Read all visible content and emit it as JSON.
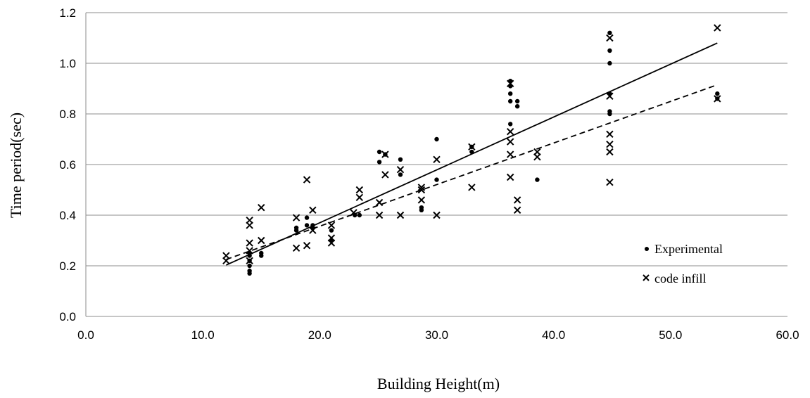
{
  "chart_data": {
    "type": "scatter",
    "title": "",
    "xlabel": "Building Height(m)",
    "ylabel": "Time period(sec)",
    "xlim": [
      0,
      60
    ],
    "ylim": [
      0,
      1.2
    ],
    "x_ticks": [
      "0.0",
      "10.0",
      "20.0",
      "30.0",
      "40.0",
      "50.0",
      "60.0"
    ],
    "y_ticks": [
      "0.0",
      "0.2",
      "0.4",
      "0.6",
      "0.8",
      "1.0",
      "1.2"
    ],
    "grid": "horizontal",
    "legend_position": "bottom-right",
    "series": [
      {
        "name": "Experimental",
        "marker": "dot",
        "color": "#000000",
        "points": [
          [
            14.0,
            0.17
          ],
          [
            14.0,
            0.18
          ],
          [
            14.0,
            0.2
          ],
          [
            14.0,
            0.22
          ],
          [
            14.0,
            0.24
          ],
          [
            14.0,
            0.25
          ],
          [
            15.0,
            0.24
          ],
          [
            15.0,
            0.25
          ],
          [
            18.0,
            0.34
          ],
          [
            18.0,
            0.35
          ],
          [
            18.9,
            0.36
          ],
          [
            18.9,
            0.39
          ],
          [
            19.4,
            0.35
          ],
          [
            19.4,
            0.36
          ],
          [
            21.0,
            0.3
          ],
          [
            21.0,
            0.34
          ],
          [
            23.0,
            0.4
          ],
          [
            23.4,
            0.4
          ],
          [
            25.1,
            0.61
          ],
          [
            25.1,
            0.65
          ],
          [
            25.6,
            0.64
          ],
          [
            26.9,
            0.56
          ],
          [
            26.9,
            0.62
          ],
          [
            28.7,
            0.42
          ],
          [
            28.7,
            0.43
          ],
          [
            30.0,
            0.54
          ],
          [
            30.0,
            0.7
          ],
          [
            33.0,
            0.65
          ],
          [
            33.0,
            0.67
          ],
          [
            36.3,
            0.76
          ],
          [
            36.3,
            0.85
          ],
          [
            36.3,
            0.88
          ],
          [
            36.3,
            0.91
          ],
          [
            36.3,
            0.93
          ],
          [
            36.9,
            0.83
          ],
          [
            36.9,
            0.85
          ],
          [
            38.6,
            0.54
          ],
          [
            44.8,
            0.8
          ],
          [
            44.8,
            0.81
          ],
          [
            44.8,
            0.88
          ],
          [
            44.8,
            1.0
          ],
          [
            44.8,
            1.05
          ],
          [
            44.8,
            1.12
          ],
          [
            54.0,
            0.86
          ],
          [
            54.0,
            0.88
          ]
        ],
        "trendline": {
          "style": "solid",
          "x": [
            12.0,
            54.0
          ],
          "y": [
            0.203,
            1.08
          ]
        }
      },
      {
        "name": "code infill",
        "marker": "x",
        "color": "#000000",
        "points": [
          [
            12.0,
            0.22
          ],
          [
            12.0,
            0.24
          ],
          [
            14.0,
            0.22
          ],
          [
            14.0,
            0.26
          ],
          [
            14.0,
            0.29
          ],
          [
            14.0,
            0.36
          ],
          [
            14.0,
            0.38
          ],
          [
            15.0,
            0.3
          ],
          [
            15.0,
            0.43
          ],
          [
            18.0,
            0.27
          ],
          [
            18.0,
            0.39
          ],
          [
            18.9,
            0.28
          ],
          [
            18.9,
            0.54
          ],
          [
            19.4,
            0.34
          ],
          [
            19.4,
            0.42
          ],
          [
            21.0,
            0.29
          ],
          [
            21.0,
            0.31
          ],
          [
            21.0,
            0.36
          ],
          [
            22.9,
            0.41
          ],
          [
            23.4,
            0.47
          ],
          [
            23.4,
            0.5
          ],
          [
            25.1,
            0.4
          ],
          [
            25.1,
            0.45
          ],
          [
            25.6,
            0.56
          ],
          [
            25.6,
            0.64
          ],
          [
            26.9,
            0.4
          ],
          [
            26.9,
            0.58
          ],
          [
            28.7,
            0.46
          ],
          [
            28.7,
            0.5
          ],
          [
            28.7,
            0.51
          ],
          [
            30.0,
            0.4
          ],
          [
            30.0,
            0.62
          ],
          [
            33.0,
            0.51
          ],
          [
            33.0,
            0.67
          ],
          [
            36.3,
            0.55
          ],
          [
            36.3,
            0.64
          ],
          [
            36.3,
            0.69
          ],
          [
            36.3,
            0.73
          ],
          [
            36.3,
            0.92
          ],
          [
            36.9,
            0.42
          ],
          [
            36.9,
            0.46
          ],
          [
            38.6,
            0.63
          ],
          [
            38.6,
            0.65
          ],
          [
            44.8,
            0.53
          ],
          [
            44.8,
            0.65
          ],
          [
            44.8,
            0.68
          ],
          [
            44.8,
            0.72
          ],
          [
            44.8,
            0.87
          ],
          [
            44.8,
            1.1
          ],
          [
            54.0,
            0.86
          ],
          [
            54.0,
            1.14
          ]
        ],
        "trendline": {
          "style": "dashed",
          "x": [
            12.0,
            54.0
          ],
          "y": [
            0.225,
            0.915
          ]
        }
      }
    ]
  }
}
